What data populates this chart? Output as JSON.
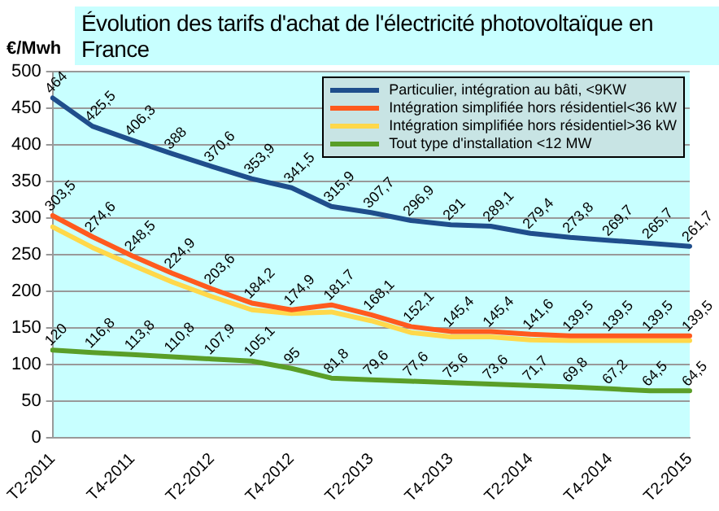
{
  "chart_data": {
    "type": "line",
    "title": "Évolution des tarifs d'achat de l'électricité photovoltaïque en France",
    "ylabel": "€/Mwh",
    "categories": [
      "T2-2011",
      null,
      "T4-2011",
      null,
      "T2-2012",
      null,
      "T4-2012",
      null,
      "T2-2013",
      null,
      "T4-2013",
      null,
      "T2-2014",
      null,
      "T4-2014",
      null,
      "T2-2015"
    ],
    "series": [
      {
        "name": "Particulier, intégration au bâti, <9KW",
        "color": "#1f4e8c",
        "values": [
          464,
          425.5,
          406.3,
          388,
          370.6,
          353.9,
          341.5,
          315.9,
          307.7,
          296.9,
          291,
          289.1,
          279.4,
          273.8,
          269.7,
          265.7,
          261.7
        ],
        "value_labels": [
          "464",
          "425,5",
          "406,3",
          "388",
          "370,6",
          "353,9",
          "341,5",
          "315,9",
          "307,7",
          "296,9",
          "291",
          "289,1",
          "279,4",
          "273,8",
          "269,7",
          "265,7",
          "261,7"
        ]
      },
      {
        "name": "Intégration simplifiée hors résidentiel<36 kW",
        "color": "#ff5a1e",
        "values": [
          303.5,
          274.6,
          248.5,
          224.9,
          203.6,
          184.2,
          174.9,
          181.7,
          168.1,
          152.1,
          145.4,
          145.4,
          141.6,
          139.5,
          139.5,
          139.5,
          139.5
        ],
        "value_labels": [
          "303,5",
          "274,6",
          "248,5",
          "224,9",
          "203,6",
          "184,2",
          "174,9",
          "181,7",
          "168,1",
          "152,1",
          "145,4",
          "145,4",
          "141,6",
          "139,5",
          "139,5",
          "139,5",
          "139,5"
        ]
      },
      {
        "name": "Intégration simplifiée hors résidentiel>36 kW",
        "color": "#ffd84a",
        "values": [
          288,
          260,
          236,
          213,
          193,
          175,
          170,
          172,
          160,
          144,
          138,
          138,
          134,
          133,
          133,
          133,
          133
        ]
      },
      {
        "name": "Tout type d'installation <12 MW",
        "color": "#5a9e28",
        "values": [
          120,
          116.8,
          113.8,
          110.8,
          107.9,
          105.1,
          95,
          81.8,
          79.6,
          77.6,
          75.6,
          73.6,
          71.7,
          69.8,
          67.2,
          64.5,
          64.5
        ],
        "value_labels": [
          "120",
          "116,8",
          "113,8",
          "110,8",
          "107,9",
          "105,1",
          "95",
          "81,8",
          "79,6",
          "77,6",
          "75,6",
          "73,6",
          "71,7",
          "69,8",
          "67,2",
          "64,5",
          "64,5"
        ]
      }
    ],
    "ylim": [
      0,
      500
    ],
    "yticks": [
      0,
      50,
      100,
      150,
      200,
      250,
      300,
      350,
      400,
      450,
      500
    ],
    "grid": "y",
    "legend": "top right",
    "marker": "none",
    "line_style": "solid"
  }
}
